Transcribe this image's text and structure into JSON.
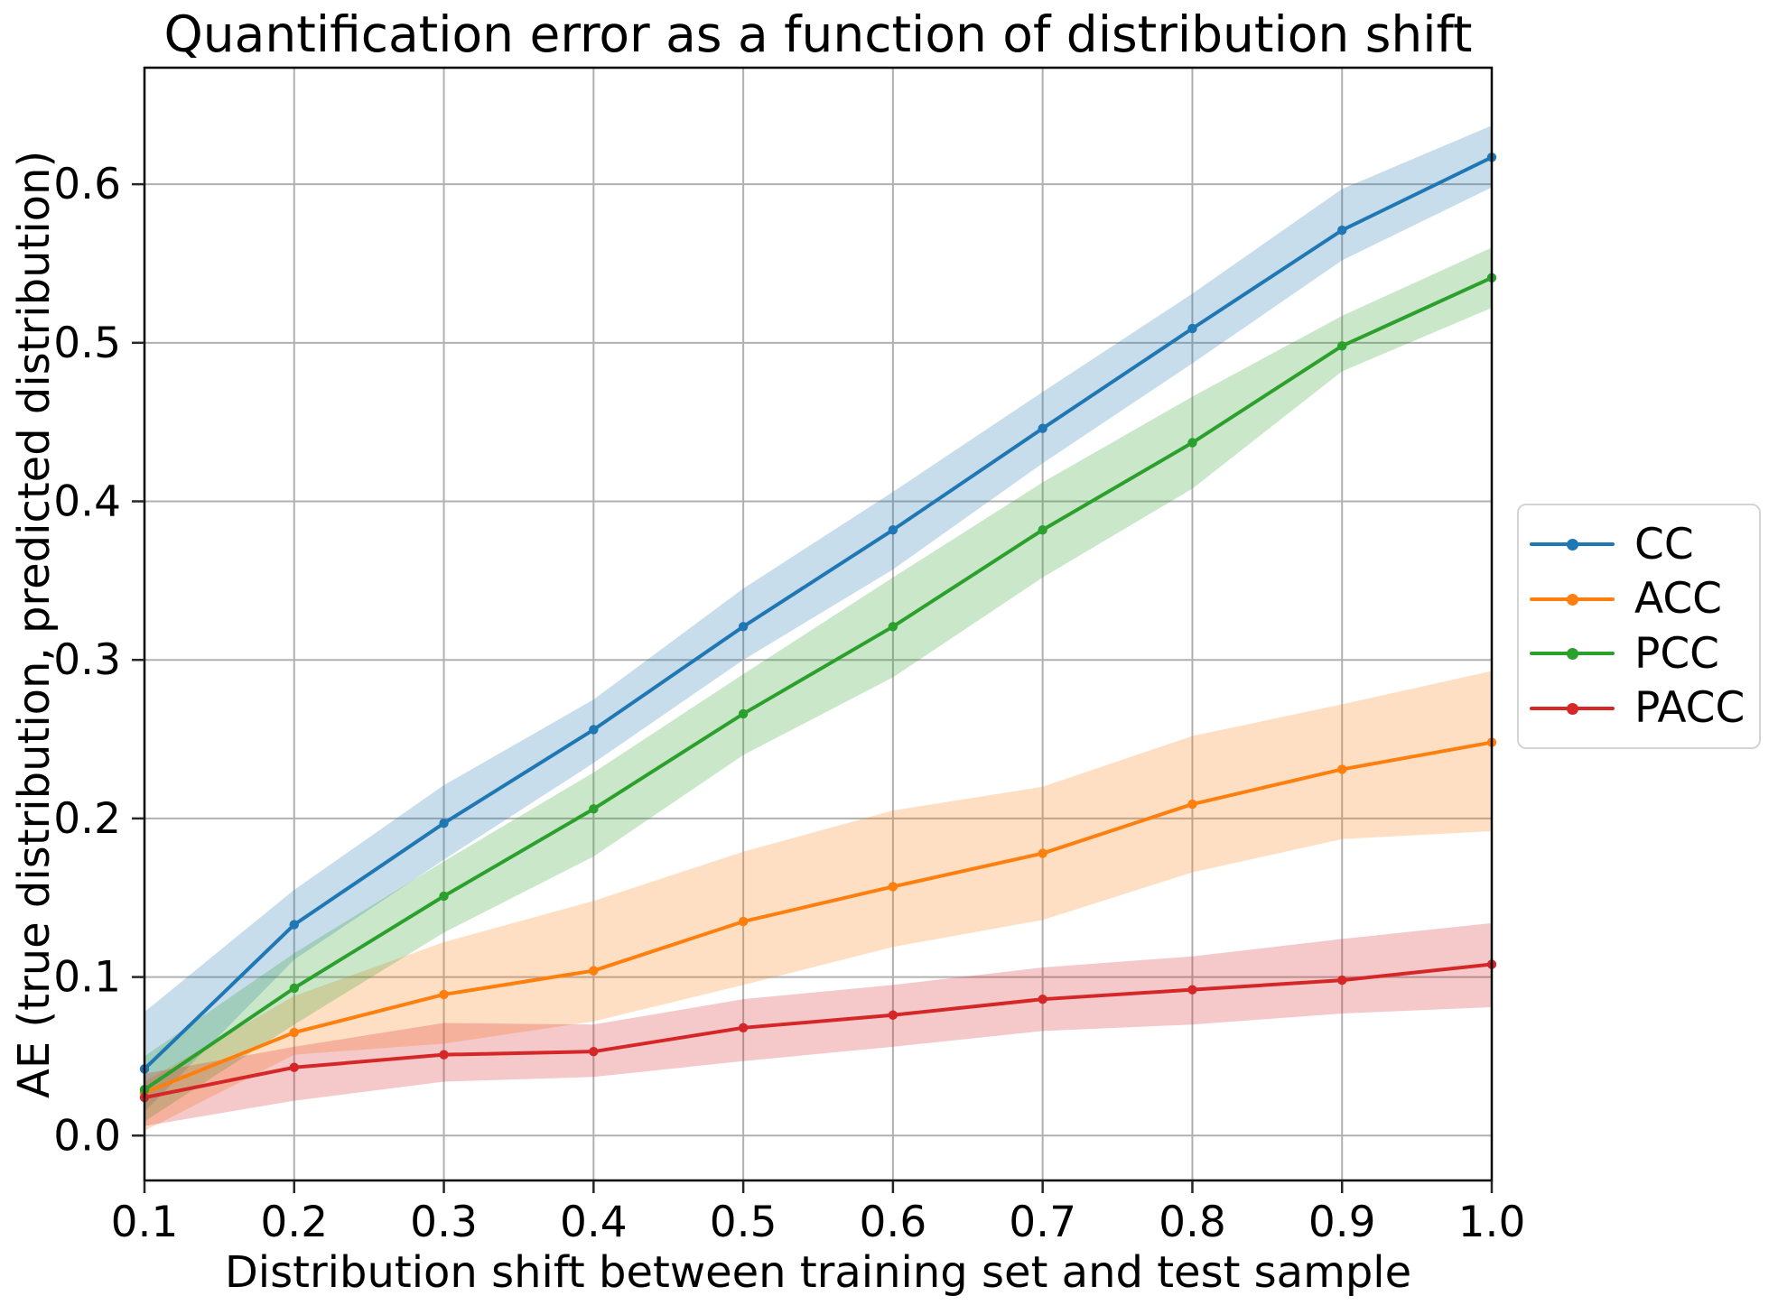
{
  "figure": {
    "title": "Quantification error as a function of distribution shift",
    "xlabel": "Distribution shift between training set and test sample",
    "ylabel": "AE (true distribution, predicted distribution)"
  },
  "legend": {
    "position": "center-right-outside",
    "entries": [
      "CC",
      "ACC",
      "PCC",
      "PACC"
    ]
  },
  "chart_data": {
    "type": "line",
    "title": "Quantification error as a function of distribution shift",
    "xlabel": "Distribution shift between training set and test sample",
    "ylabel": "AE (true distribution, predicted distribution)",
    "x": [
      0.1,
      0.2,
      0.3,
      0.4,
      0.5,
      0.6,
      0.7,
      0.8,
      0.9,
      1.0
    ],
    "xlim": [
      0.1,
      1.0
    ],
    "ylim": [
      -0.0283,
      0.6735
    ],
    "xticks": [
      "0.1",
      "0.2",
      "0.3",
      "0.4",
      "0.5",
      "0.6",
      "0.7",
      "0.8",
      "0.9",
      "1.0"
    ],
    "yticks": [
      "0.0",
      "0.1",
      "0.2",
      "0.3",
      "0.4",
      "0.5",
      "0.6"
    ],
    "grid": true,
    "grid_color": "#b0b0b0",
    "legend_position": "center right, outside axes",
    "marker": "circle",
    "band_opacity": 0.25,
    "series": [
      {
        "name": "CC",
        "color": "#1f77b4",
        "values": [
          0.042,
          0.133,
          0.197,
          0.256,
          0.321,
          0.382,
          0.446,
          0.509,
          0.571,
          0.617
        ],
        "band_lower": [
          0.015,
          0.111,
          0.174,
          0.235,
          0.3,
          0.357,
          0.424,
          0.487,
          0.552,
          0.598
        ],
        "band_upper": [
          0.078,
          0.155,
          0.221,
          0.275,
          0.345,
          0.406,
          0.469,
          0.531,
          0.597,
          0.637
        ]
      },
      {
        "name": "ACC",
        "color": "#ff7f0e",
        "values": [
          0.027,
          0.065,
          0.089,
          0.104,
          0.135,
          0.157,
          0.178,
          0.209,
          0.231,
          0.248
        ],
        "band_lower": [
          0.003,
          0.051,
          0.058,
          0.072,
          0.095,
          0.119,
          0.136,
          0.166,
          0.187,
          0.192
        ],
        "band_upper": [
          0.034,
          0.088,
          0.122,
          0.148,
          0.179,
          0.205,
          0.22,
          0.252,
          0.272,
          0.293
        ]
      },
      {
        "name": "PCC",
        "color": "#2ca02c",
        "values": [
          0.029,
          0.093,
          0.151,
          0.206,
          0.266,
          0.321,
          0.382,
          0.437,
          0.498,
          0.541
        ],
        "band_lower": [
          0.009,
          0.07,
          0.128,
          0.176,
          0.24,
          0.289,
          0.352,
          0.408,
          0.482,
          0.522
        ],
        "band_upper": [
          0.05,
          0.115,
          0.173,
          0.229,
          0.291,
          0.352,
          0.412,
          0.466,
          0.517,
          0.56
        ]
      },
      {
        "name": "PACC",
        "color": "#d62728",
        "values": [
          0.024,
          0.043,
          0.051,
          0.053,
          0.068,
          0.076,
          0.086,
          0.092,
          0.098,
          0.108
        ],
        "band_lower": [
          0.006,
          0.022,
          0.034,
          0.037,
          0.047,
          0.056,
          0.066,
          0.07,
          0.077,
          0.081
        ],
        "band_upper": [
          0.039,
          0.056,
          0.071,
          0.07,
          0.086,
          0.095,
          0.106,
          0.113,
          0.124,
          0.134
        ]
      }
    ]
  }
}
